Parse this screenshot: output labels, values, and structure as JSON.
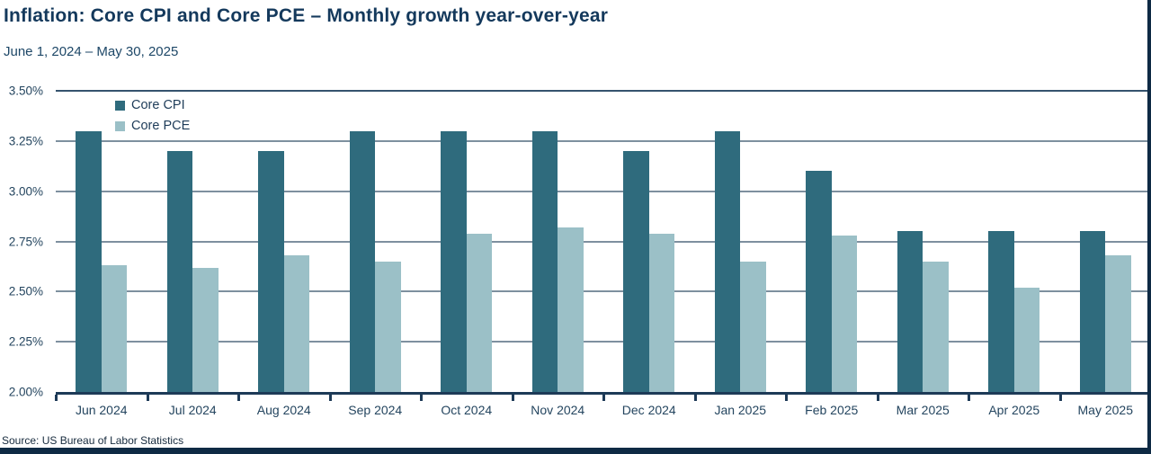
{
  "header": {
    "title": "Inflation: Core CPI and Core PCE – Monthly growth year-over-year",
    "subtitle": "June 1, 2024 – May 30, 2025"
  },
  "footer": {
    "source": "Source: US Bureau of Labor Statistics"
  },
  "colors": {
    "core_cpi": "#2F6B7D",
    "core_pce": "#9BC0C7",
    "title_navy": "#14395C",
    "axis_navy": "#1D3A57",
    "gridline": "#5E7487",
    "frame_border": "#0E2A44"
  },
  "chart_data": {
    "type": "bar",
    "title": "Inflation: Core CPI and Core PCE – Monthly growth year-over-year",
    "subtitle": "June 1, 2024 – May 30, 2025",
    "categories": [
      "Jun 2024",
      "Jul 2024",
      "Aug 2024",
      "Sep 2024",
      "Oct 2024",
      "Nov 2024",
      "Dec 2024",
      "Jan 2025",
      "Feb 2025",
      "Mar 2025",
      "Apr 2025",
      "May 2025"
    ],
    "series": [
      {
        "name": "Core CPI",
        "color": "#2F6B7D",
        "values": [
          3.3,
          3.2,
          3.2,
          3.3,
          3.3,
          3.3,
          3.2,
          3.3,
          3.1,
          2.8,
          2.8,
          2.8
        ]
      },
      {
        "name": "Core PCE",
        "color": "#9BC0C7",
        "values": [
          2.63,
          2.62,
          2.68,
          2.65,
          2.79,
          2.82,
          2.79,
          2.65,
          2.78,
          2.65,
          2.52,
          2.68
        ]
      }
    ],
    "xlabel": "",
    "ylabel": "",
    "y_ticks": [
      "3.50%",
      "3.25%",
      "3.00%",
      "2.75%",
      "2.50%",
      "2.25%",
      "2.00%"
    ],
    "ylim": [
      2.0,
      3.5
    ],
    "unit": "%",
    "grid": true,
    "legend_position": "top-left-inside"
  }
}
